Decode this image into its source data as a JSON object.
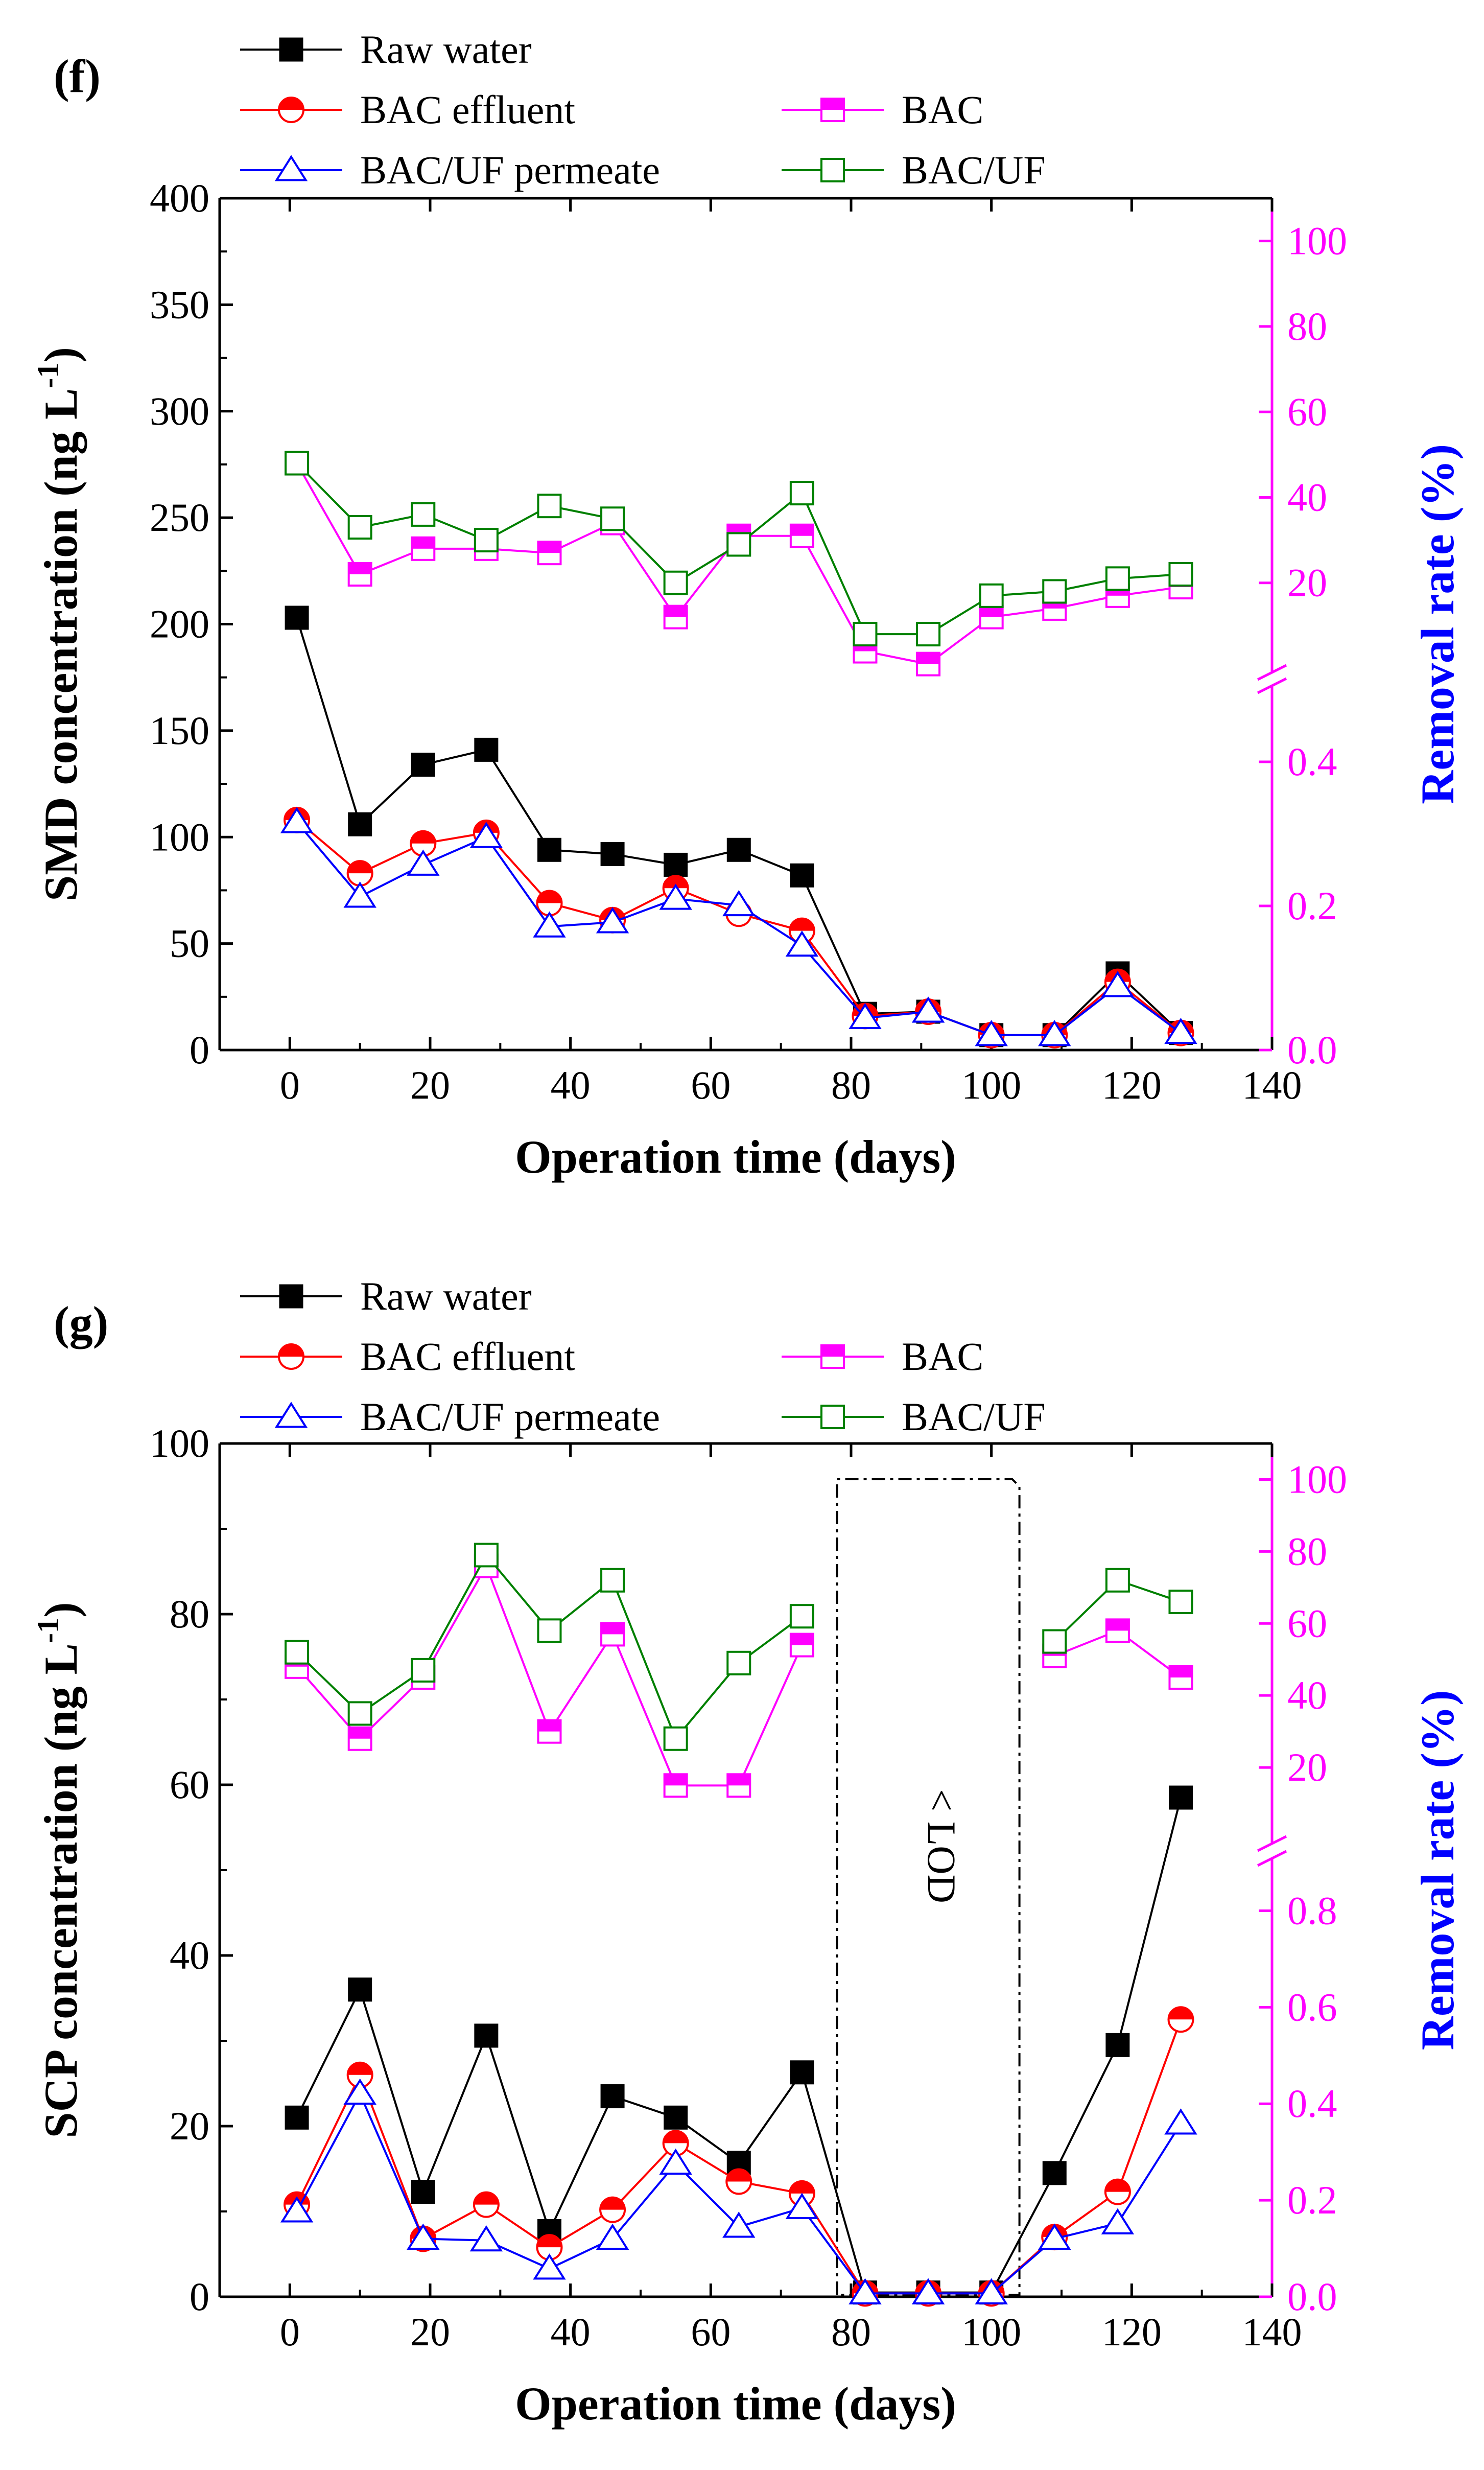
{
  "colors": {
    "raw": "#000000",
    "effluent": "#ff0000",
    "permeate": "#0000ff",
    "rem_bac": "#ff00ff",
    "rem_bacuf": "#008000",
    "right_axis": "#ff00ff",
    "right_title": "#0000ff"
  },
  "chart_data": [
    {
      "type": "line",
      "panel": "(f)",
      "xlabel": "Operation time (days)",
      "ylabel": "SMD concentration (ng L⁻¹)",
      "ylabel_main": "SMD concentration (ng L",
      "ylabel_sup": "-1",
      "ylabel_close": ")",
      "y2label": "Removal rate (%)",
      "xlim": [
        -10,
        140
      ],
      "ylim": [
        0,
        400
      ],
      "x_ticks": [
        "0",
        "20",
        "40",
        "60",
        "80",
        "100",
        "120",
        "140"
      ],
      "y_ticks": [
        "0",
        "50",
        "100",
        "150",
        "200",
        "250",
        "300",
        "350",
        "400"
      ],
      "y2_lower_ticks": [
        "0.0",
        "0.2",
        "0.4"
      ],
      "y2_upper_ticks": [
        "20",
        "40",
        "60",
        "80",
        "100"
      ],
      "y2_lower_range": [
        0,
        0.5
      ],
      "y2_upper_range": [
        0,
        110
      ],
      "legend": [
        "Raw water",
        "BAC effluent",
        "BAC",
        "BAC/UF permeate",
        "BAC/UF"
      ],
      "x": [
        1,
        10,
        19,
        28,
        37,
        46,
        55,
        64,
        73,
        82,
        91,
        100,
        109,
        118,
        127
      ],
      "series": [
        {
          "name": "Raw water",
          "axis": "left",
          "values": [
            203,
            106,
            134,
            141,
            94,
            92,
            87,
            94,
            82,
            17,
            18,
            7,
            7,
            36,
            8
          ]
        },
        {
          "name": "BAC effluent",
          "axis": "left",
          "values": [
            108,
            83,
            97,
            102,
            69,
            61,
            76,
            64,
            56,
            16,
            18,
            7,
            7,
            32,
            8
          ]
        },
        {
          "name": "BAC/UF permeate",
          "axis": "left",
          "values": [
            107,
            72,
            87,
            100,
            58,
            60,
            71,
            68,
            49,
            15,
            18,
            7,
            7,
            30,
            8
          ]
        },
        {
          "name": "BAC",
          "axis": "right",
          "values": [
            48,
            22,
            28,
            28,
            27,
            34,
            12,
            31,
            31,
            4,
            1,
            12,
            14,
            17,
            19
          ]
        },
        {
          "name": "BAC/UF",
          "axis": "right",
          "values": [
            48,
            33,
            36,
            30,
            38,
            35,
            20,
            29,
            41,
            8,
            8,
            17,
            18,
            21,
            22
          ]
        }
      ]
    },
    {
      "type": "line",
      "panel": "(g)",
      "xlabel": "Operation time (days)",
      "ylabel": "SCP concentration (ng L⁻¹)",
      "ylabel_main": "SCP concentration (ng L",
      "ylabel_sup": "-1",
      "ylabel_close": ")",
      "y2label": "Removal rate (%)",
      "annotation": "< LOD",
      "lod_box_x": [
        78,
        104
      ],
      "xlim": [
        -10,
        140
      ],
      "ylim": [
        0,
        100
      ],
      "x_ticks": [
        "0",
        "20",
        "40",
        "60",
        "80",
        "100",
        "120",
        "140"
      ],
      "y_ticks": [
        "0",
        "20",
        "40",
        "60",
        "80",
        "100"
      ],
      "y2_lower_ticks": [
        "0.0",
        "0.2",
        "0.4",
        "0.6",
        "0.8"
      ],
      "y2_upper_ticks": [
        "20",
        "40",
        "60",
        "80",
        "100"
      ],
      "y2_lower_range": [
        0,
        0.9
      ],
      "y2_upper_range": [
        0,
        110
      ],
      "legend": [
        "Raw water",
        "BAC effluent",
        "BAC",
        "BAC/UF permeate",
        "BAC/UF"
      ],
      "x": [
        1,
        10,
        19,
        28,
        37,
        46,
        55,
        64,
        73,
        82,
        91,
        100,
        109,
        118,
        127
      ],
      "series": [
        {
          "name": "Raw water",
          "axis": "left",
          "values": [
            21,
            36,
            12.3,
            30.6,
            7.7,
            23.5,
            21,
            15.7,
            26.3,
            0.5,
            0.5,
            0.5,
            14.5,
            29.5,
            58.5
          ]
        },
        {
          "name": "BAC effluent",
          "axis": "left",
          "values": [
            10.8,
            26,
            6.8,
            10.8,
            5.8,
            10.2,
            18,
            13.5,
            12.1,
            0.4,
            0.4,
            0.4,
            7,
            12.3,
            32.5
          ]
        },
        {
          "name": "BAC/UF permeate",
          "axis": "left",
          "values": [
            10,
            23.8,
            6.8,
            6.6,
            3.3,
            6.8,
            15.6,
            8.2,
            10.4,
            0.4,
            0.4,
            0.4,
            6.8,
            8.6,
            20.3
          ]
        },
        {
          "name": "BAC",
          "axis": "right",
          "values": [
            48,
            28,
            45,
            76,
            30,
            57,
            15,
            15,
            54,
            null,
            null,
            null,
            51,
            58,
            45
          ]
        },
        {
          "name": "BAC/UF",
          "axis": "right",
          "values": [
            52,
            35,
            47,
            79,
            58,
            72,
            28,
            49,
            62,
            null,
            null,
            null,
            55,
            72,
            66
          ]
        }
      ]
    }
  ]
}
